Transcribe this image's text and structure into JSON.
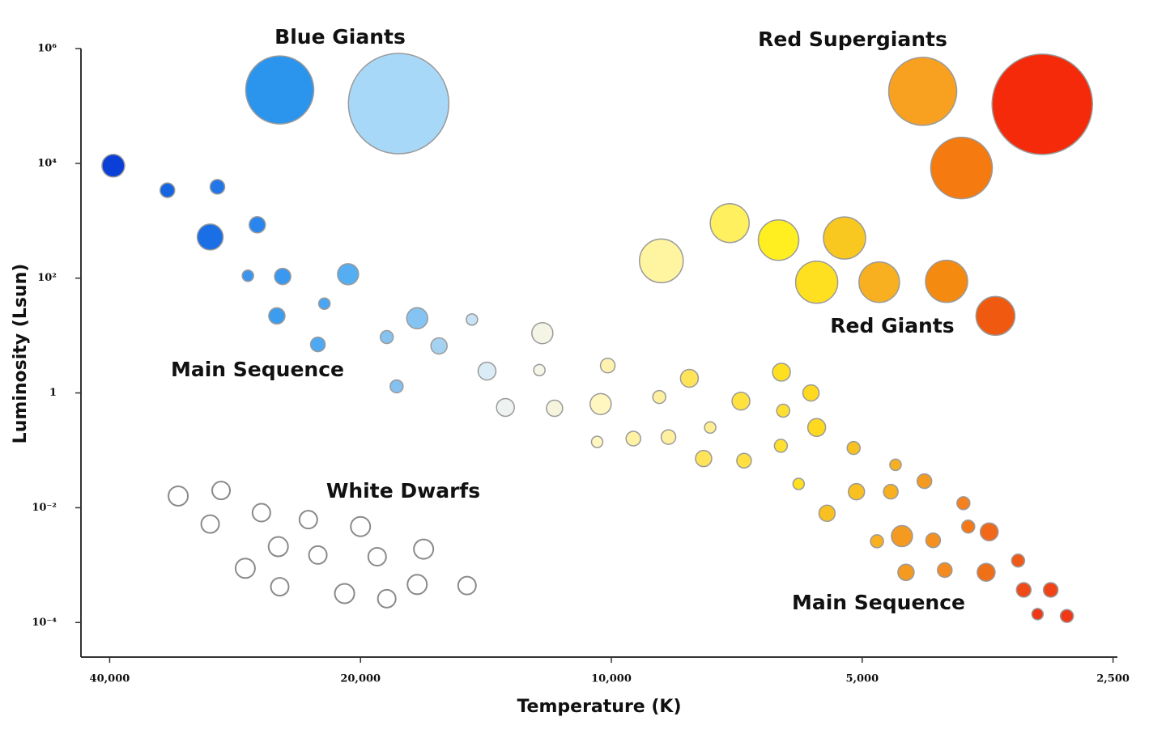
{
  "chart_data": {
    "type": "bubble",
    "x_label": "Temperature (K)",
    "y_label": "Luminosity (Lsun)",
    "xscale": "log",
    "yscale": "log",
    "xlim": [
      43300,
      2470
    ],
    "ylim": [
      2.5e-05,
      1000000
    ],
    "xticks": [
      {
        "value": 40000,
        "label": "40,000"
      },
      {
        "value": 20000,
        "label": "20,000"
      },
      {
        "value": 10000,
        "label": "10,000"
      },
      {
        "value": 5000,
        "label": "5,000"
      },
      {
        "value": 2500,
        "label": "2,500"
      }
    ],
    "yticks": [
      {
        "value": 1000000,
        "label": "10⁶"
      },
      {
        "value": 10000,
        "label": "10⁴"
      },
      {
        "value": 100,
        "label": "10²"
      },
      1,
      {
        "value": 0.01,
        "label": "10⁻²"
      },
      {
        "value": 0.0001,
        "label": "10⁻⁴"
      }
    ],
    "series": [
      {
        "name": "Blue Giants",
        "x": [
          25000,
          18000
        ],
        "values": [
          190000,
          110000
        ],
        "sizes": [
          42,
          62
        ],
        "colors": [
          "#2b95ee",
          "#a8d8f8"
        ]
      },
      {
        "name": "Red Supergiants",
        "x": [
          4230,
          3040,
          3800
        ],
        "values": [
          180000,
          107000,
          8300
        ],
        "sizes": [
          42,
          62,
          38
        ],
        "colors": [
          "#f8a020",
          "#f52a0a",
          "#f57a10"
        ]
      },
      {
        "name": "Red Giants",
        "x": [
          8710,
          7210,
          6300,
          5250,
          5670,
          4770,
          3960,
          3460
        ],
        "values": [
          200,
          910,
          460,
          500,
          85,
          85,
          88,
          22
        ],
        "sizes": [
          27,
          24,
          25,
          26,
          26,
          25,
          26,
          24
        ],
        "colors": [
          "#fff4a0",
          "#fff060",
          "#ffee20",
          "#f8c820",
          "#ffe020",
          "#f8b020",
          "#f58a10",
          "#f05a10"
        ]
      },
      {
        "name": "Main Sequence",
        "x": [
          39600,
          34100,
          29700,
          30300,
          26600,
          27300,
          24800,
          20700,
          22100,
          25200,
          22500,
          17100,
          18600,
          16100,
          14700,
          12100,
          14100,
          12200,
          18100,
          13400,
          11700,
          10300,
          10100,
          8760,
          8060,
          6990,
          6250,
          5760,
          6220,
          5670,
          10400,
          9410,
          8540,
          7610,
          7750,
          6930,
          6260,
          5120,
          4560,
          5960,
          5080,
          4620,
          4210,
          5510,
          3780,
          4800,
          4480,
          4110,
          3730,
          3520,
          4430,
          3980,
          3550,
          3250,
          3200,
          2970,
          3080,
          2840
        ],
        "values": [
          9100,
          3400,
          3900,
          520,
          850,
          110,
          107,
          117,
          36,
          22,
          7,
          20,
          9.4,
          6.6,
          19,
          11,
          2.4,
          2.5,
          1.3,
          0.56,
          0.54,
          0.64,
          3,
          0.85,
          1.8,
          0.72,
          2.3,
          1,
          0.49,
          0.25,
          0.14,
          0.16,
          0.17,
          0.25,
          0.072,
          0.066,
          0.12,
          0.11,
          0.056,
          0.026,
          0.019,
          0.019,
          0.029,
          0.008,
          0.012,
          0.0026,
          0.0032,
          0.0027,
          0.0047,
          0.0038,
          0.00075,
          0.00082,
          0.00075,
          0.0012,
          0.00037,
          0.00037,
          0.00014,
          0.00013
        ],
        "sizes": [
          14,
          9,
          9,
          16,
          10,
          7,
          10,
          13,
          7,
          10,
          9,
          13,
          8,
          10,
          7,
          13,
          11,
          7,
          8,
          11,
          10,
          13,
          9,
          8,
          11,
          11,
          11,
          10,
          8,
          11,
          7,
          9,
          9,
          7,
          10,
          9,
          8,
          8,
          7,
          7,
          10,
          9,
          9,
          10,
          8,
          8,
          13,
          9,
          8,
          11,
          10,
          9,
          11,
          8,
          9,
          9,
          7,
          8
        ],
        "colors": [
          "#0a3fd8",
          "#1565e0",
          "#2176e8",
          "#1a6fe6",
          "#2a86ee",
          "#3b95f0",
          "#3a98f0",
          "#55aef2",
          "#4aa6f2",
          "#3c9cf0",
          "#4ea8f2",
          "#85c4f2",
          "#86c2f0",
          "#a6d2f2",
          "#c6e2f4",
          "#f5f5e6",
          "#dcecf6",
          "#f5f5e8",
          "#84c0f0",
          "#eef2f0",
          "#f6f4dc",
          "#fff6c0",
          "#fff2b0",
          "#fff0a0",
          "#ffe45a",
          "#ffe240",
          "#ffe020",
          "#ffd820",
          "#ffe030",
          "#ffd820",
          "#fff6c0",
          "#fff2a4",
          "#fff0a0",
          "#ffee90",
          "#ffe45a",
          "#ffe040",
          "#ffe030",
          "#f8c020",
          "#f8b020",
          "#ffe020",
          "#f8c020",
          "#f8b020",
          "#f59a20",
          "#f8c020",
          "#f58020",
          "#f8b020",
          "#f59a20",
          "#f59020",
          "#f57818",
          "#f06818",
          "#f59a20",
          "#f58a20",
          "#f07018",
          "#f05a18",
          "#f04a18",
          "#f04418",
          "#f03818",
          "#f03818"
        ]
      },
      {
        "name": "White Dwarfs",
        "color": "#ffffff",
        "x": [
          33100,
          29400,
          30300,
          26300,
          23100,
          20000,
          25100,
          22500,
          19100,
          16800,
          27500,
          25000,
          20900,
          18600,
          17100,
          14900
        ],
        "values": [
          0.016,
          0.02,
          0.0052,
          0.0082,
          0.0062,
          0.0047,
          0.0021,
          0.0015,
          0.0014,
          0.0019,
          0.00088,
          0.00042,
          0.00032,
          0.00026,
          0.00046,
          0.00044
        ],
        "sizes": [
          12,
          11,
          11,
          11,
          11,
          12,
          12,
          11,
          11,
          12,
          12,
          11,
          12,
          11,
          12,
          11
        ]
      }
    ]
  }
}
